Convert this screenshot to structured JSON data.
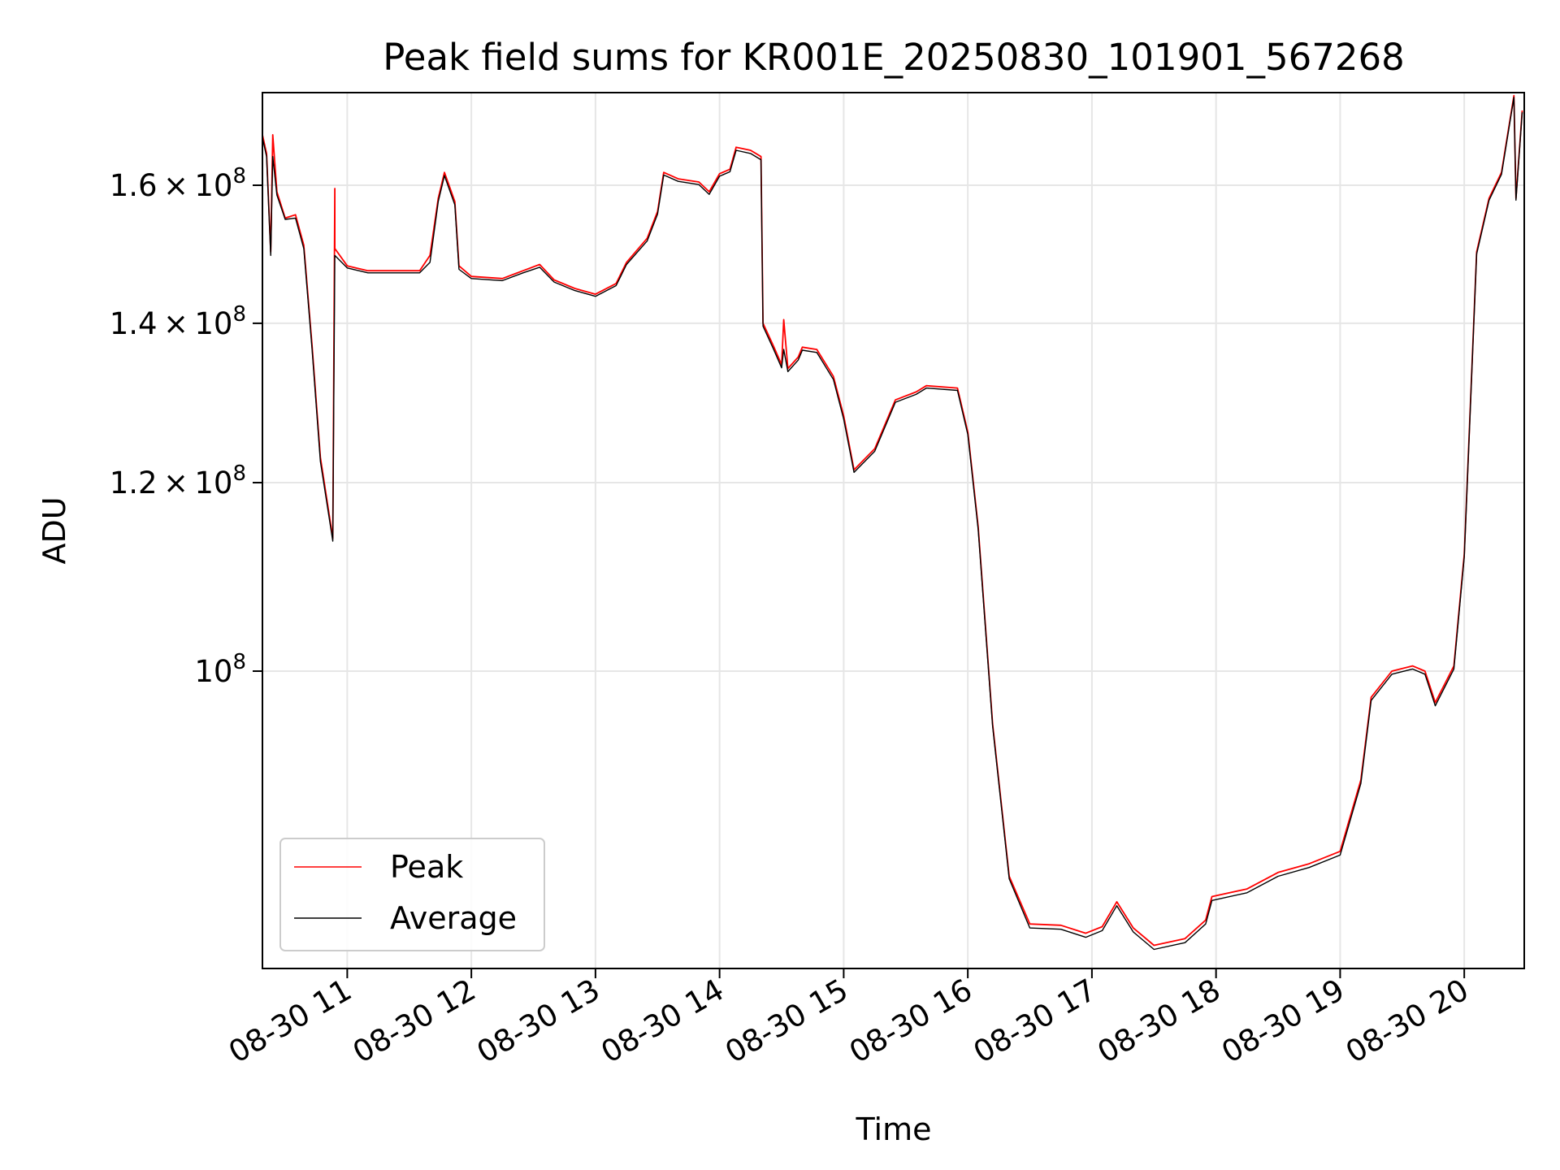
{
  "chart_data": {
    "type": "line",
    "title": "Peak field sums for KR001E_20250830_101901_567268",
    "xlabel": "Time",
    "ylabel": "ADU",
    "y_scale": "log",
    "x_range": [
      "2025-08-30 10:19",
      "2025-08-30 20:29"
    ],
    "ylim": [
      75000000,
      175000000
    ],
    "grid": true,
    "legend_position": "lower-left",
    "x_ticks": [
      "08-30 11",
      "08-30 12",
      "08-30 13",
      "08-30 14",
      "08-30 15",
      "08-30 16",
      "08-30 17",
      "08-30 18",
      "08-30 19",
      "08-30 20"
    ],
    "y_ticks": [
      {
        "value": 100000000,
        "mantissa": "",
        "exponent": "8"
      },
      {
        "value": 120000000,
        "mantissa": "1.2",
        "exponent": "8"
      },
      {
        "value": 140000000,
        "mantissa": "1.4",
        "exponent": "8"
      },
      {
        "value": 160000000,
        "mantissa": "1.6",
        "exponent": "8"
      }
    ],
    "series": [
      {
        "name": "Peak",
        "color": "#ff0000",
        "points": [
          [
            "2025-08-30 10:19",
            168000000
          ],
          [
            "2025-08-30 10:21",
            165000000
          ],
          [
            "2025-08-30 10:23",
            150000000
          ],
          [
            "2025-08-30 10:24",
            168000000
          ],
          [
            "2025-08-30 10:26",
            159000000
          ],
          [
            "2025-08-30 10:30",
            155000000
          ],
          [
            "2025-08-30 10:35",
            155500000
          ],
          [
            "2025-08-30 10:39",
            151000000
          ],
          [
            "2025-08-30 10:43",
            137000000
          ],
          [
            "2025-08-30 10:47",
            123000000
          ],
          [
            "2025-08-30 10:53",
            113700000
          ],
          [
            "2025-08-30 10:54",
            159500000
          ],
          [
            "2025-08-30 10:54",
            150500000
          ],
          [
            "2025-08-30 11:00",
            148000000
          ],
          [
            "2025-08-30 11:10",
            147300000
          ],
          [
            "2025-08-30 11:35",
            147300000
          ],
          [
            "2025-08-30 11:40",
            149500000
          ],
          [
            "2025-08-30 11:44",
            158000000
          ],
          [
            "2025-08-30 11:47",
            162000000
          ],
          [
            "2025-08-30 11:52",
            157500000
          ],
          [
            "2025-08-30 11:54",
            148000000
          ],
          [
            "2025-08-30 12:00",
            146500000
          ],
          [
            "2025-08-30 12:15",
            146200000
          ],
          [
            "2025-08-30 12:25",
            147300000
          ],
          [
            "2025-08-30 12:33",
            148200000
          ],
          [
            "2025-08-30 12:40",
            146000000
          ],
          [
            "2025-08-30 12:50",
            144800000
          ],
          [
            "2025-08-30 13:00",
            144000000
          ],
          [
            "2025-08-30 13:10",
            145500000
          ],
          [
            "2025-08-30 13:15",
            148500000
          ],
          [
            "2025-08-30 13:25",
            152000000
          ],
          [
            "2025-08-30 13:30",
            156000000
          ],
          [
            "2025-08-30 13:33",
            162000000
          ],
          [
            "2025-08-30 13:40",
            161000000
          ],
          [
            "2025-08-30 13:50",
            160500000
          ],
          [
            "2025-08-30 13:55",
            159000000
          ],
          [
            "2025-08-30 14:00",
            161800000
          ],
          [
            "2025-08-30 14:05",
            162500000
          ],
          [
            "2025-08-30 14:08",
            166000000
          ],
          [
            "2025-08-30 14:15",
            165500000
          ],
          [
            "2025-08-30 14:20",
            164500000
          ],
          [
            "2025-08-30 14:21",
            140000000
          ],
          [
            "2025-08-30 14:26",
            137000000
          ],
          [
            "2025-08-30 14:30",
            134500000
          ],
          [
            "2025-08-30 14:31",
            140500000
          ],
          [
            "2025-08-30 14:33",
            134000000
          ],
          [
            "2025-08-30 14:38",
            135500000
          ],
          [
            "2025-08-30 14:40",
            136800000
          ],
          [
            "2025-08-30 14:47",
            136500000
          ],
          [
            "2025-08-30 14:55",
            133000000
          ],
          [
            "2025-08-30 15:00",
            128000000
          ],
          [
            "2025-08-30 15:05",
            121500000
          ],
          [
            "2025-08-30 15:15",
            124000000
          ],
          [
            "2025-08-30 15:25",
            130000000
          ],
          [
            "2025-08-30 15:35",
            131000000
          ],
          [
            "2025-08-30 15:40",
            131800000
          ],
          [
            "2025-08-30 15:55",
            131500000
          ],
          [
            "2025-08-30 16:00",
            126000000
          ],
          [
            "2025-08-30 16:05",
            115000000
          ],
          [
            "2025-08-30 16:12",
            95000000
          ],
          [
            "2025-08-30 16:20",
            82000000
          ],
          [
            "2025-08-30 16:30",
            78300000
          ],
          [
            "2025-08-30 16:45",
            78200000
          ],
          [
            "2025-08-30 16:57",
            77600000
          ],
          [
            "2025-08-30 17:05",
            78100000
          ],
          [
            "2025-08-30 17:12",
            80000000
          ],
          [
            "2025-08-30 17:20",
            78000000
          ],
          [
            "2025-08-30 17:30",
            76700000
          ],
          [
            "2025-08-30 17:45",
            77200000
          ],
          [
            "2025-08-30 17:55",
            78600000
          ],
          [
            "2025-08-30 17:58",
            80400000
          ],
          [
            "2025-08-30 18:15",
            81000000
          ],
          [
            "2025-08-30 18:30",
            82300000
          ],
          [
            "2025-08-30 18:45",
            83000000
          ],
          [
            "2025-08-30 19:00",
            84000000
          ],
          [
            "2025-08-30 19:10",
            90000000
          ],
          [
            "2025-08-30 19:15",
            97500000
          ],
          [
            "2025-08-30 19:25",
            100000000
          ],
          [
            "2025-08-30 19:35",
            100500000
          ],
          [
            "2025-08-30 19:41",
            100000000
          ],
          [
            "2025-08-30 19:46",
            97000000
          ],
          [
            "2025-08-30 19:55",
            100500000
          ],
          [
            "2025-08-30 20:00",
            112000000
          ],
          [
            "2025-08-30 20:06",
            150000000
          ],
          [
            "2025-08-30 20:12",
            158000000
          ],
          [
            "2025-08-30 20:18",
            162000000
          ],
          [
            "2025-08-30 20:24",
            174500000
          ],
          [
            "2025-08-30 20:25",
            158000000
          ],
          [
            "2025-08-30 20:28",
            172000000
          ]
        ]
      },
      {
        "name": "Average",
        "color": "#000000",
        "points": [
          [
            "2025-08-30 10:19",
            167500000
          ],
          [
            "2025-08-30 10:21",
            164500000
          ],
          [
            "2025-08-30 10:23",
            149500000
          ],
          [
            "2025-08-30 10:24",
            164500000
          ],
          [
            "2025-08-30 10:26",
            158500000
          ],
          [
            "2025-08-30 10:30",
            154800000
          ],
          [
            "2025-08-30 10:35",
            155000000
          ],
          [
            "2025-08-30 10:39",
            150500000
          ],
          [
            "2025-08-30 10:43",
            136500000
          ],
          [
            "2025-08-30 10:47",
            122500000
          ],
          [
            "2025-08-30 10:53",
            113400000
          ],
          [
            "2025-08-30 10:54",
            149500000
          ],
          [
            "2025-08-30 11:00",
            147700000
          ],
          [
            "2025-08-30 11:10",
            147000000
          ],
          [
            "2025-08-30 11:35",
            147000000
          ],
          [
            "2025-08-30 11:40",
            148500000
          ],
          [
            "2025-08-30 11:44",
            157500000
          ],
          [
            "2025-08-30 11:47",
            161500000
          ],
          [
            "2025-08-30 11:52",
            157000000
          ],
          [
            "2025-08-30 11:54",
            147500000
          ],
          [
            "2025-08-30 12:00",
            146200000
          ],
          [
            "2025-08-30 12:15",
            145900000
          ],
          [
            "2025-08-30 12:25",
            147000000
          ],
          [
            "2025-08-30 12:33",
            147800000
          ],
          [
            "2025-08-30 12:40",
            145700000
          ],
          [
            "2025-08-30 12:50",
            144500000
          ],
          [
            "2025-08-30 13:00",
            143700000
          ],
          [
            "2025-08-30 13:10",
            145200000
          ],
          [
            "2025-08-30 13:15",
            148200000
          ],
          [
            "2025-08-30 13:25",
            151600000
          ],
          [
            "2025-08-30 13:30",
            155600000
          ],
          [
            "2025-08-30 13:33",
            161600000
          ],
          [
            "2025-08-30 13:40",
            160600000
          ],
          [
            "2025-08-30 13:50",
            160100000
          ],
          [
            "2025-08-30 13:55",
            158600000
          ],
          [
            "2025-08-30 14:00",
            161400000
          ],
          [
            "2025-08-30 14:05",
            162100000
          ],
          [
            "2025-08-30 14:08",
            165500000
          ],
          [
            "2025-08-30 14:15",
            165000000
          ],
          [
            "2025-08-30 14:20",
            164000000
          ],
          [
            "2025-08-30 14:21",
            139600000
          ],
          [
            "2025-08-30 14:26",
            136600000
          ],
          [
            "2025-08-30 14:30",
            134100000
          ],
          [
            "2025-08-30 14:31",
            136500000
          ],
          [
            "2025-08-30 14:33",
            133600000
          ],
          [
            "2025-08-30 14:38",
            135100000
          ],
          [
            "2025-08-30 14:40",
            136400000
          ],
          [
            "2025-08-30 14:47",
            136100000
          ],
          [
            "2025-08-30 14:55",
            132600000
          ],
          [
            "2025-08-30 15:00",
            127600000
          ],
          [
            "2025-08-30 15:05",
            121200000
          ],
          [
            "2025-08-30 15:15",
            123700000
          ],
          [
            "2025-08-30 15:25",
            129700000
          ],
          [
            "2025-08-30 15:35",
            130700000
          ],
          [
            "2025-08-30 15:40",
            131500000
          ],
          [
            "2025-08-30 15:55",
            131200000
          ],
          [
            "2025-08-30 16:00",
            125700000
          ],
          [
            "2025-08-30 16:05",
            114700000
          ],
          [
            "2025-08-30 16:12",
            94800000
          ],
          [
            "2025-08-30 16:20",
            81800000
          ],
          [
            "2025-08-30 16:30",
            78000000
          ],
          [
            "2025-08-30 16:45",
            77900000
          ],
          [
            "2025-08-30 16:57",
            77300000
          ],
          [
            "2025-08-30 17:05",
            77800000
          ],
          [
            "2025-08-30 17:12",
            79700000
          ],
          [
            "2025-08-30 17:20",
            77700000
          ],
          [
            "2025-08-30 17:30",
            76400000
          ],
          [
            "2025-08-30 17:45",
            76900000
          ],
          [
            "2025-08-30 17:55",
            78300000
          ],
          [
            "2025-08-30 17:58",
            80100000
          ],
          [
            "2025-08-30 18:15",
            80700000
          ],
          [
            "2025-08-30 18:30",
            82000000
          ],
          [
            "2025-08-30 18:45",
            82700000
          ],
          [
            "2025-08-30 19:00",
            83700000
          ],
          [
            "2025-08-30 19:10",
            89700000
          ],
          [
            "2025-08-30 19:15",
            97200000
          ],
          [
            "2025-08-30 19:25",
            99700000
          ],
          [
            "2025-08-30 19:35",
            100200000
          ],
          [
            "2025-08-30 19:41",
            99700000
          ],
          [
            "2025-08-30 19:46",
            96700000
          ],
          [
            "2025-08-30 19:55",
            100200000
          ],
          [
            "2025-08-30 20:00",
            111700000
          ],
          [
            "2025-08-30 20:06",
            149700000
          ],
          [
            "2025-08-30 20:12",
            157700000
          ],
          [
            "2025-08-30 20:18",
            161700000
          ],
          [
            "2025-08-30 20:24",
            174200000
          ],
          [
            "2025-08-30 20:25",
            157700000
          ],
          [
            "2025-08-30 20:28",
            171700000
          ]
        ]
      }
    ]
  }
}
